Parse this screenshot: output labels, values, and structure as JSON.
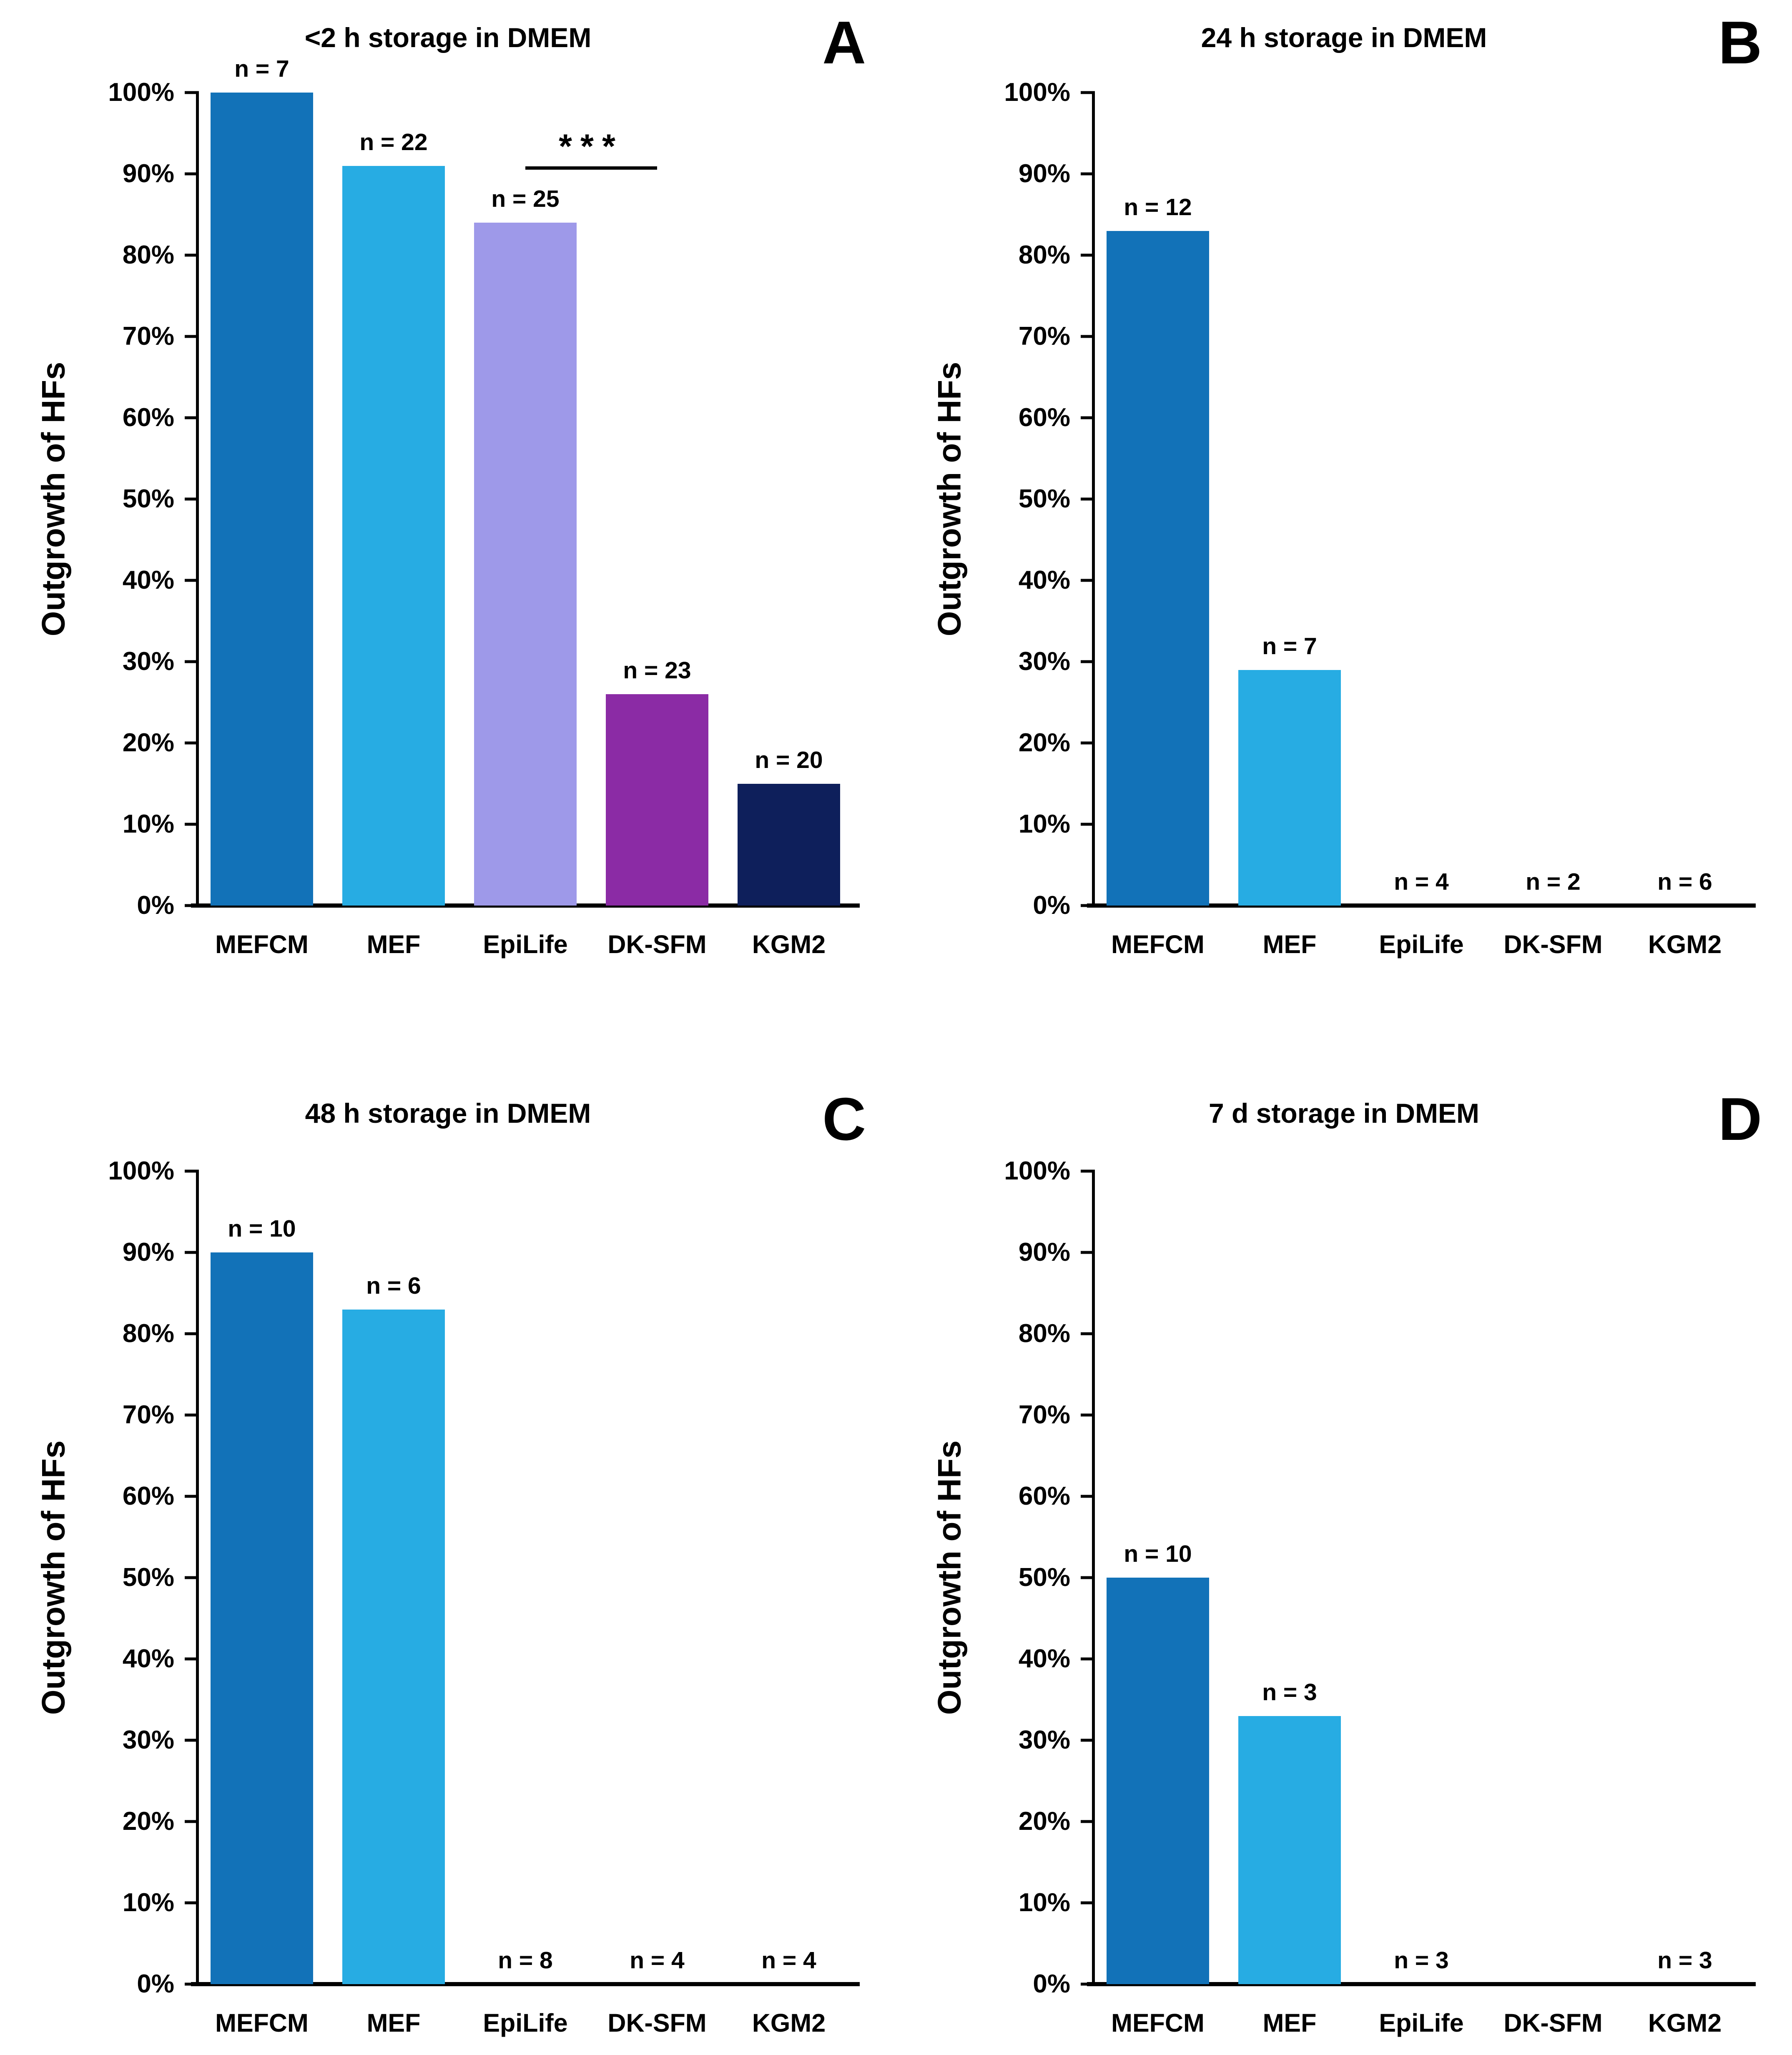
{
  "figure": {
    "background": "#ffffff",
    "text_color": "#000000",
    "axis_color": "#000000",
    "ylabel": "Outgrowth of HFs",
    "categories": [
      "MEFCM",
      "MEF",
      "EpiLife",
      "DK-SFM",
      "KGM2"
    ],
    "bar_colors": [
      "#1272B8",
      "#27ACE3",
      "#9E99E9",
      "#8B2BA5",
      "#0E1F5B"
    ],
    "ytick_labels": [
      "100%",
      "90%",
      "80%",
      "70%",
      "60%",
      "50%",
      "40%",
      "30%",
      "20%",
      "10%",
      "0%"
    ]
  },
  "chart_data": [
    {
      "type": "bar",
      "panel_letter": "A",
      "title": "<2 h storage in DMEM",
      "ylabel": "Outgrowth of HFs",
      "categories": [
        "MEFCM",
        "MEF",
        "EpiLife",
        "DK-SFM",
        "KGM2"
      ],
      "values": [
        100,
        91,
        84,
        26,
        15
      ],
      "bar_labels": [
        "n = 7",
        "n = 22",
        "n = 25",
        "n = 23",
        "n = 20"
      ],
      "ylim": [
        0,
        100
      ],
      "ytick_step": 10,
      "grid": false,
      "significance": {
        "from_category": "EpiLife",
        "to_category": "DK-SFM",
        "from_index": 2,
        "to_index": 3,
        "label": "***",
        "level_pct": 90.5
      }
    },
    {
      "type": "bar",
      "panel_letter": "B",
      "title": "24 h storage in DMEM",
      "ylabel": "Outgrowth of HFs",
      "categories": [
        "MEFCM",
        "MEF",
        "EpiLife",
        "DK-SFM",
        "KGM2"
      ],
      "values": [
        83,
        29,
        0,
        0,
        0
      ],
      "bar_labels": [
        "n = 12",
        "n = 7",
        "n = 4",
        "n = 2",
        "n = 6"
      ],
      "ylim": [
        0,
        100
      ],
      "ytick_step": 10,
      "grid": false,
      "significance": null
    },
    {
      "type": "bar",
      "panel_letter": "C",
      "title": "48 h storage in DMEM",
      "ylabel": "Outgrowth of HFs",
      "categories": [
        "MEFCM",
        "MEF",
        "EpiLife",
        "DK-SFM",
        "KGM2"
      ],
      "values": [
        90,
        83,
        0,
        0,
        0
      ],
      "bar_labels": [
        "n = 10",
        "n = 6",
        "n = 8",
        "n = 4",
        "n = 4"
      ],
      "ylim": [
        0,
        100
      ],
      "ytick_step": 10,
      "grid": false,
      "significance": null
    },
    {
      "type": "bar",
      "panel_letter": "D",
      "title": "7 d storage in DMEM",
      "ylabel": "Outgrowth of HFs",
      "categories": [
        "MEFCM",
        "MEF",
        "EpiLife",
        "DK-SFM",
        "KGM2"
      ],
      "values": [
        50,
        33,
        0,
        0,
        0
      ],
      "bar_labels": [
        "n = 10",
        "n = 3",
        "n = 3",
        null,
        "n = 3"
      ],
      "ylim": [
        0,
        100
      ],
      "ytick_step": 10,
      "grid": false,
      "significance": null
    }
  ]
}
